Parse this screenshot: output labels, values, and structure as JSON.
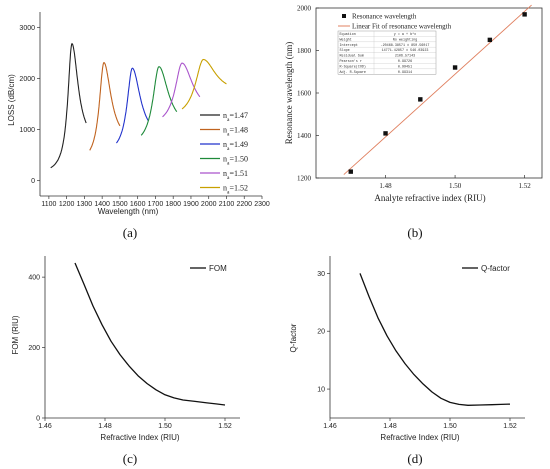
{
  "panels": [
    {
      "label": "(a)"
    },
    {
      "label": "(b)"
    },
    {
      "label": "(c)"
    },
    {
      "label": "(d)"
    }
  ],
  "chart_data": [
    {
      "type": "line",
      "panel": "(a)",
      "xlabel": "Wavelength (nm)",
      "ylabel": "LOSS (dB/cm)",
      "xlim": [
        1050,
        2300
      ],
      "ylim": [
        -300,
        3300
      ],
      "xticks": [
        1100,
        1200,
        1300,
        1400,
        1500,
        1600,
        1700,
        1800,
        1900,
        2000,
        2100,
        2200,
        2300
      ],
      "yticks": [
        0,
        1000,
        2000,
        3000
      ],
      "legend_position": "right",
      "series": [
        {
          "name": "n_a=1.47",
          "sub": "a",
          "value_label": "=1.47",
          "color": "#222222",
          "peak_x": 1230,
          "peak_y": 2680,
          "x_range": [
            1110,
            1310
          ],
          "base_left": 120,
          "base_right": 700,
          "width": 28
        },
        {
          "name": "n_a=1.48",
          "sub": "a",
          "value_label": "=1.48",
          "color": "#c0631f",
          "peak_x": 1410,
          "peak_y": 2310,
          "x_range": [
            1330,
            1500
          ],
          "base_left": 320,
          "base_right": 720,
          "width": 32
        },
        {
          "name": "n_a=1.49",
          "sub": "a",
          "value_label": "=1.49",
          "color": "#2233cc",
          "peak_x": 1570,
          "peak_y": 2200,
          "x_range": [
            1480,
            1660
          ],
          "base_left": 500,
          "base_right": 800,
          "width": 36
        },
        {
          "name": "n_a=1.50",
          "sub": "a",
          "value_label": "=1.50",
          "color": "#1e8a3a",
          "peak_x": 1720,
          "peak_y": 2230,
          "x_range": [
            1620,
            1820
          ],
          "base_left": 650,
          "base_right": 1000,
          "width": 42
        },
        {
          "name": "n_a=1.51",
          "sub": "a",
          "value_label": "=1.51",
          "color": "#aa55cc",
          "peak_x": 1850,
          "peak_y": 2300,
          "x_range": [
            1740,
            1950
          ],
          "base_left": 1050,
          "base_right": 1300,
          "width": 48
        },
        {
          "name": "n_a=1.52",
          "sub": "a",
          "value_label": "=1.52",
          "color": "#c8a000",
          "peak_x": 1970,
          "peak_y": 2370,
          "x_range": [
            1850,
            2100
          ],
          "base_left": 1200,
          "base_right": 1700,
          "width": 55
        }
      ]
    },
    {
      "type": "scatter",
      "panel": "(b)",
      "xlabel": "Analyte refractive index (RIU)",
      "ylabel": "Resonance wavelength (nm)",
      "xlim": [
        1.46,
        1.525
      ],
      "ylim": [
        1200,
        2000
      ],
      "xticks": [
        1.48,
        1.5,
        1.52
      ],
      "yticks": [
        1200,
        1400,
        1600,
        1800,
        2000
      ],
      "legend_position": "top-left",
      "x": [
        1.47,
        1.48,
        1.49,
        1.5,
        1.51,
        1.52
      ],
      "y": [
        1230,
        1410,
        1570,
        1720,
        1850,
        1970
      ],
      "series": [
        {
          "name": "Resonance wavelength",
          "kind": "points",
          "color": "#111111"
        },
        {
          "name": "Linear Fit of resonance wavelength",
          "kind": "fit",
          "color": "#e08060"
        }
      ],
      "fit": {
        "slope": 14771.42857,
        "intercept": -20468.38571
      },
      "stats_table": [
        [
          "Equation",
          "y = a + b*x"
        ],
        [
          "Weight",
          "No weighting"
        ],
        [
          "Intercept",
          "-20468.38571 ± 850.56017"
        ],
        [
          "Slope",
          "14771.42857 ± 546.03923"
        ],
        [
          "Residual Sum",
          "2106.57143"
        ],
        [
          "Pearson's r",
          "0.99726"
        ],
        [
          "R-Square(COD)",
          "0.99451"
        ],
        [
          "Adj. R-Square",
          "0.99314"
        ]
      ]
    },
    {
      "type": "line",
      "panel": "(c)",
      "xlabel": "Refractive Index (RIU)",
      "ylabel": "FOM (RIU)",
      "xlim": [
        1.46,
        1.525
      ],
      "ylim": [
        0,
        460
      ],
      "xticks": [
        1.46,
        1.48,
        1.5,
        1.52
      ],
      "yticks": [
        0,
        200,
        400
      ],
      "legend_position": "top-right",
      "series": [
        {
          "name": "FOM",
          "color": "#111111",
          "x": [
            1.47,
            1.473,
            1.476,
            1.479,
            1.482,
            1.485,
            1.488,
            1.491,
            1.494,
            1.497,
            1.5,
            1.503,
            1.506,
            1.51,
            1.514,
            1.517,
            1.52
          ],
          "y": [
            440,
            380,
            318,
            265,
            218,
            180,
            148,
            120,
            98,
            80,
            66,
            57,
            51,
            47,
            43,
            40,
            37
          ]
        }
      ]
    },
    {
      "type": "line",
      "panel": "(d)",
      "xlabel": "Refractive Index (RIU)",
      "ylabel": "Q-factor",
      "xlim": [
        1.46,
        1.525
      ],
      "ylim": [
        5,
        33
      ],
      "xticks": [
        1.46,
        1.48,
        1.5,
        1.52
      ],
      "yticks": [
        10,
        20,
        30
      ],
      "legend_position": "top-right",
      "series": [
        {
          "name": "Q-factor",
          "color": "#111111",
          "x": [
            1.47,
            1.473,
            1.476,
            1.479,
            1.482,
            1.485,
            1.488,
            1.491,
            1.494,
            1.497,
            1.5,
            1.503,
            1.506,
            1.51,
            1.514,
            1.517,
            1.52
          ],
          "y": [
            30.0,
            26.0,
            22.3,
            19.2,
            16.6,
            14.4,
            12.5,
            10.9,
            9.5,
            8.4,
            7.7,
            7.35,
            7.2,
            7.25,
            7.3,
            7.35,
            7.4
          ]
        }
      ]
    }
  ]
}
